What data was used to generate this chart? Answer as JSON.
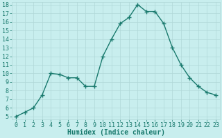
{
  "x": [
    0,
    1,
    2,
    3,
    4,
    5,
    6,
    7,
    8,
    9,
    10,
    11,
    12,
    13,
    14,
    15,
    16,
    17,
    18,
    19,
    20,
    21,
    22,
    23
  ],
  "y": [
    5,
    5.5,
    6,
    7.5,
    10,
    9.9,
    9.5,
    9.5,
    8.5,
    8.5,
    12,
    14,
    15.8,
    16.5,
    18,
    17.2,
    17.2,
    15.8,
    13,
    11,
    9.5,
    8.5,
    7.8,
    7.5
  ],
  "line_color": "#1a7a6e",
  "marker": "+",
  "marker_size": 4,
  "linewidth": 1.0,
  "xlabel": "Humidex (Indice chaleur)",
  "ylim": [
    5,
    18
  ],
  "xlim": [
    -0.5,
    23.5
  ],
  "yticks": [
    5,
    6,
    7,
    8,
    9,
    10,
    11,
    12,
    13,
    14,
    15,
    16,
    17,
    18
  ],
  "xticks": [
    0,
    1,
    2,
    3,
    4,
    5,
    6,
    7,
    8,
    9,
    10,
    11,
    12,
    13,
    14,
    15,
    16,
    17,
    18,
    19,
    20,
    21,
    22,
    23
  ],
  "bg_color": "#c8eeee",
  "grid_color": "#b0d8d8",
  "tick_color": "#1a7a6e",
  "label_color": "#1a7a6e",
  "xlabel_fontsize": 7,
  "tick_fontsize": 6
}
